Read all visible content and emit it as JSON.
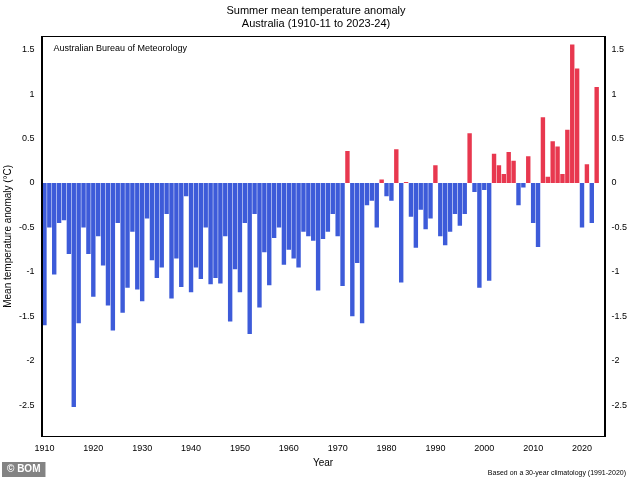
{
  "chart_data": {
    "type": "bar",
    "title": "Summer mean temperature anomaly",
    "subtitle": "Australia (1910-11 to 2023-24)",
    "x_label": "Year",
    "y_label": "Mean temperature anomaly (°C)",
    "annotations": [
      "Australian Bureau of Meteorology",
      "Based on a 30-year climatology (1991-2020)",
      "© BOM"
    ],
    "x": [
      1910,
      1911,
      1912,
      1913,
      1914,
      1915,
      1916,
      1917,
      1918,
      1919,
      1920,
      1921,
      1922,
      1923,
      1924,
      1925,
      1926,
      1927,
      1928,
      1929,
      1930,
      1931,
      1932,
      1933,
      1934,
      1935,
      1936,
      1937,
      1938,
      1939,
      1940,
      1941,
      1942,
      1943,
      1944,
      1945,
      1946,
      1947,
      1948,
      1949,
      1950,
      1951,
      1952,
      1953,
      1954,
      1955,
      1956,
      1957,
      1958,
      1959,
      1960,
      1961,
      1962,
      1963,
      1964,
      1965,
      1966,
      1967,
      1968,
      1969,
      1970,
      1971,
      1972,
      1973,
      1974,
      1975,
      1976,
      1977,
      1978,
      1979,
      1980,
      1981,
      1982,
      1983,
      1984,
      1985,
      1986,
      1987,
      1988,
      1989,
      1990,
      1991,
      1992,
      1993,
      1994,
      1995,
      1996,
      1997,
      1998,
      1999,
      2000,
      2001,
      2002,
      2003,
      2004,
      2005,
      2006,
      2007,
      2008,
      2009,
      2010,
      2011,
      2012,
      2013,
      2014,
      2015,
      2016,
      2017,
      2018,
      2019,
      2020,
      2021,
      2022,
      2023
    ],
    "values": [
      -1.6,
      -0.5,
      -1.03,
      -0.45,
      -0.42,
      -0.8,
      -2.52,
      -1.58,
      -0.5,
      -0.8,
      -1.28,
      -0.6,
      -0.93,
      -1.38,
      -1.66,
      -0.45,
      -1.46,
      -1.18,
      -0.55,
      -1.2,
      -1.33,
      -0.4,
      -0.87,
      -1.07,
      -0.95,
      -0.35,
      -1.3,
      -0.85,
      -1.17,
      -0.15,
      -1.23,
      -0.95,
      -1.08,
      -0.5,
      -1.14,
      -1.07,
      -1.13,
      -0.6,
      -1.56,
      -0.97,
      -1.23,
      -0.45,
      -1.7,
      -0.35,
      -1.4,
      -0.78,
      -1.15,
      -0.62,
      -0.5,
      -0.92,
      -0.75,
      -0.85,
      -0.95,
      -0.55,
      -0.6,
      -0.65,
      -1.21,
      -0.63,
      -0.55,
      -0.35,
      -0.6,
      -1.16,
      0.36,
      -1.5,
      -0.9,
      -1.58,
      -0.25,
      -0.2,
      -0.5,
      0.04,
      -0.15,
      -0.2,
      0.38,
      -1.12,
      0.01,
      -0.38,
      -0.73,
      -0.3,
      -0.52,
      -0.4,
      0.2,
      -0.6,
      -0.7,
      -0.55,
      -0.35,
      -0.48,
      -0.35,
      0.56,
      -0.1,
      -1.18,
      -0.08,
      -1.1,
      0.33,
      0.2,
      0.1,
      0.35,
      0.25,
      -0.25,
      -0.05,
      0.3,
      -0.45,
      -0.72,
      0.74,
      0.07,
      0.47,
      0.41,
      0.1,
      0.6,
      1.56,
      1.29,
      -0.5,
      0.21,
      -0.45,
      1.08
    ],
    "colors": [
      "#3d5bd9",
      "#3d5bd9",
      "#3d5bd9",
      "#3d5bd9",
      "#3d5bd9",
      "#3d5bd9",
      "#3d5bd9",
      "#3d5bd9",
      "#3d5bd9",
      "#3d5bd9",
      "#3d5bd9",
      "#3d5bd9",
      "#3d5bd9",
      "#3d5bd9",
      "#3d5bd9",
      "#3d5bd9",
      "#3d5bd9",
      "#3d5bd9",
      "#3d5bd9",
      "#3d5bd9",
      "#3d5bd9",
      "#3d5bd9",
      "#3d5bd9",
      "#3d5bd9",
      "#3d5bd9",
      "#3d5bd9",
      "#3d5bd9",
      "#3d5bd9",
      "#3d5bd9",
      "#3d5bd9",
      "#3d5bd9",
      "#3d5bd9",
      "#3d5bd9",
      "#3d5bd9",
      "#3d5bd9",
      "#3d5bd9",
      "#3d5bd9",
      "#3d5bd9",
      "#3d5bd9",
      "#3d5bd9",
      "#3d5bd9",
      "#3d5bd9",
      "#3d5bd9",
      "#3d5bd9",
      "#3d5bd9",
      "#3d5bd9",
      "#3d5bd9",
      "#3d5bd9",
      "#3d5bd9",
      "#3d5bd9",
      "#3d5bd9",
      "#3d5bd9",
      "#3d5bd9",
      "#3d5bd9",
      "#3d5bd9",
      "#3d5bd9",
      "#3d5bd9",
      "#3d5bd9",
      "#3d5bd9",
      "#3d5bd9",
      "#3d5bd9",
      "#3d5bd9",
      "#e8384f",
      "#3d5bd9",
      "#3d5bd9",
      "#3d5bd9",
      "#3d5bd9",
      "#3d5bd9",
      "#3d5bd9",
      "#e8384f",
      "#3d5bd9",
      "#3d5bd9",
      "#e8384f",
      "#3d5bd9",
      "#e8384f",
      "#3d5bd9",
      "#3d5bd9",
      "#3d5bd9",
      "#3d5bd9",
      "#3d5bd9",
      "#e8384f",
      "#3d5bd9",
      "#3d5bd9",
      "#3d5bd9",
      "#3d5bd9",
      "#3d5bd9",
      "#3d5bd9",
      "#e8384f",
      "#3d5bd9",
      "#3d5bd9",
      "#3d5bd9",
      "#3d5bd9",
      "#e8384f",
      "#e8384f",
      "#e8384f",
      "#e8384f",
      "#e8384f",
      "#3d5bd9",
      "#3d5bd9",
      "#e8384f",
      "#3d5bd9",
      "#3d5bd9",
      "#e8384f",
      "#e8384f",
      "#e8384f",
      "#e8384f",
      "#e8384f",
      "#e8384f",
      "#e8384f",
      "#e8384f",
      "#3d5bd9",
      "#e8384f",
      "#3d5bd9",
      "#e8384f"
    ],
    "xlim": [
      1909.4,
      2024.6
    ],
    "xticks": [
      1910,
      1920,
      1930,
      1940,
      1950,
      1960,
      1970,
      1980,
      1990,
      2000,
      2010,
      2020
    ],
    "ylim": [
      -2.85,
      1.65
    ],
    "yticks": [
      -2.5,
      -2,
      -1.5,
      -1,
      -0.5,
      0,
      0.5,
      1,
      1.5
    ],
    "grid": false
  }
}
